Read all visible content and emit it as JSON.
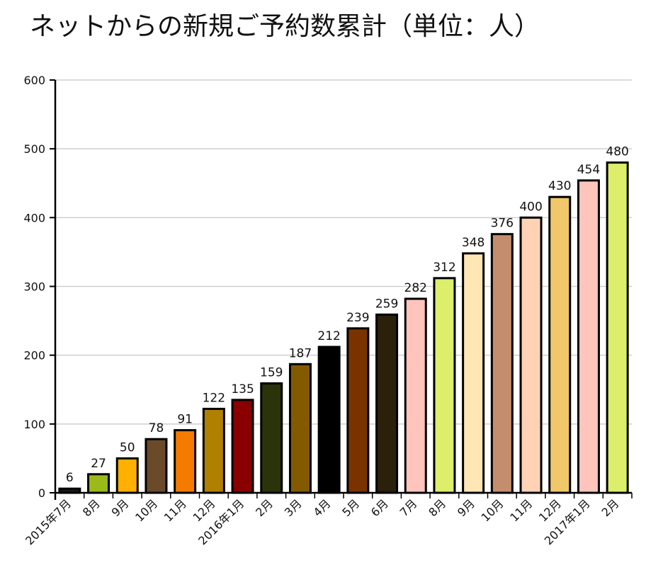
{
  "chart_data": {
    "type": "bar",
    "title": "ネットからの新規ご予約数累計（単位：人）",
    "xlabel": "",
    "ylabel": "",
    "ylim": [
      0,
      600
    ],
    "yticks": [
      0,
      100,
      200,
      300,
      400,
      500,
      600
    ],
    "grid": true,
    "categories": [
      "2015年7月",
      "8月",
      "9月",
      "10月",
      "11月",
      "12月",
      "2016年1月",
      "2月",
      "3月",
      "4月",
      "5月",
      "6月",
      "7月",
      "8月",
      "9月",
      "10月",
      "11月",
      "12月",
      "2017年1月",
      "2月"
    ],
    "values": [
      6,
      27,
      50,
      78,
      91,
      122,
      135,
      159,
      187,
      212,
      239,
      259,
      282,
      312,
      348,
      376,
      400,
      430,
      454,
      480
    ],
    "colors": [
      "#1a1a1a",
      "#9aba1a",
      "#ffb000",
      "#6b4a2a",
      "#f57a00",
      "#b08000",
      "#8a0000",
      "#2b330a",
      "#835a00",
      "#000000",
      "#7a3300",
      "#2b200a",
      "#ffc4bb",
      "#dcee6a",
      "#ffe6b5",
      "#c48e6e",
      "#ffd1b5",
      "#f0c869",
      "#ffc4bb",
      "#dcee6a"
    ]
  }
}
